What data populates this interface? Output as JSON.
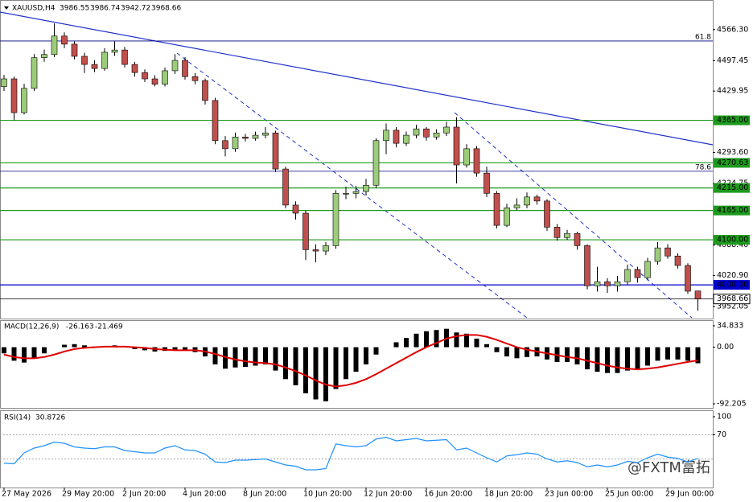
{
  "chart_data": [
    {
      "type": "candlestick",
      "symbol": "XAUUSD,H4",
      "categories": [
        "27 May 2026",
        null,
        null,
        null,
        null,
        null,
        "29 May 20:00",
        null,
        null,
        null,
        null,
        null,
        "2 Jun 20:00",
        null,
        null,
        null,
        null,
        null,
        "4 Jun 20:00",
        null,
        null,
        null,
        null,
        null,
        "8 Jun 20:00",
        null,
        null,
        null,
        null,
        null,
        "10 Jun 20:00",
        null,
        null,
        null,
        null,
        null,
        "12 Jun 20:00",
        null,
        null,
        null,
        null,
        null,
        "16 Jun 20:00",
        null,
        null,
        null,
        null,
        null,
        "18 Jun 20:00",
        null,
        null,
        null,
        null,
        null,
        "23 Jun 00:00",
        null,
        null,
        null,
        null,
        null,
        "25 Jun 00:00",
        null,
        null,
        null,
        null,
        null,
        "29 Jun 00:00",
        null,
        null,
        null
      ],
      "open": [
        4440,
        4457,
        4382,
        4436,
        4504,
        4511,
        4552,
        4534,
        4507,
        4489,
        4480,
        4516,
        4521,
        4489,
        4471,
        4457,
        4445,
        4475,
        4498,
        4462,
        4453,
        4409,
        4320,
        4302,
        4328,
        4325,
        4332,
        4337,
        4257,
        4177,
        4159,
        4078,
        4075,
        4087,
        4203,
        4203,
        4207,
        4221,
        4320,
        4343,
        4314,
        4332,
        4346,
        4328,
        4337,
        4350,
        4266,
        4302,
        4248,
        4203,
        4132,
        4171,
        4177,
        4195,
        4186,
        4128,
        4105,
        4114,
        4087,
        3998,
        4007,
        3998,
        4007,
        4034,
        4016,
        4052,
        4082,
        4064,
        4043,
        3986.55
      ],
      "high": [
        4466,
        4462,
        4446,
        4512,
        4522,
        4580,
        4560,
        4540,
        4515,
        4498,
        4525,
        4540,
        4528,
        4495,
        4478,
        4465,
        4482,
        4512,
        4505,
        4470,
        4458,
        4415,
        4330,
        4338,
        4335,
        4340,
        4350,
        4342,
        4262,
        4185,
        4165,
        4090,
        4095,
        4210,
        4218,
        4220,
        4235,
        4325,
        4358,
        4350,
        4340,
        4355,
        4350,
        4345,
        4362,
        4372,
        4312,
        4308,
        4262,
        4208,
        4180,
        4192,
        4205,
        4200,
        4190,
        4135,
        4122,
        4118,
        4090,
        4040,
        4015,
        4020,
        4045,
        4040,
        4060,
        4095,
        4090,
        4070,
        4048,
        3986.74
      ],
      "low": [
        4430,
        4365,
        4378,
        4430,
        4495,
        4505,
        4525,
        4500,
        4470,
        4472,
        4475,
        4508,
        4482,
        4462,
        4450,
        4440,
        4440,
        4468,
        4455,
        4445,
        4400,
        4312,
        4285,
        4295,
        4318,
        4320,
        4325,
        4250,
        4170,
        4145,
        4055,
        4050,
        4066,
        4080,
        4190,
        4192,
        4198,
        4215,
        4290,
        4305,
        4308,
        4325,
        4320,
        4322,
        4330,
        4225,
        4260,
        4240,
        4195,
        4125,
        4128,
        4165,
        4170,
        4178,
        4120,
        4098,
        4100,
        4078,
        3990,
        3985,
        3982,
        3985,
        4000,
        4005,
        4010,
        4045,
        4058,
        4036,
        3980,
        3942.72
      ],
      "close": [
        4457,
        4382,
        4436,
        4504,
        4511,
        4552,
        4534,
        4507,
        4489,
        4480,
        4516,
        4521,
        4489,
        4471,
        4457,
        4445,
        4475,
        4498,
        4462,
        4453,
        4409,
        4320,
        4302,
        4328,
        4325,
        4332,
        4337,
        4257,
        4177,
        4159,
        4078,
        4075,
        4087,
        4203,
        4203,
        4207,
        4221,
        4320,
        4343,
        4314,
        4332,
        4346,
        4328,
        4337,
        4350,
        4266,
        4302,
        4248,
        4203,
        4132,
        4171,
        4177,
        4195,
        4186,
        4128,
        4105,
        4114,
        4087,
        3998,
        4007,
        3998,
        4007,
        4034,
        4016,
        4052,
        4082,
        4064,
        4043,
        3986,
        3968.66
      ],
      "up_color": "#9ccc7a",
      "down_color": "#c0504d",
      "ylim": [
        3927,
        4623
      ],
      "yticks": [
        {
          "value": 4566.3,
          "label": "4566.30"
        },
        {
          "value": 4497.45,
          "label": "4497.45"
        },
        {
          "value": 4429.95,
          "label": "4429.95"
        },
        {
          "value": 4293.6,
          "label": "4293.60"
        },
        {
          "value": 4224.75,
          "label": "4224.75"
        },
        {
          "value": 4088.4,
          "label": "4088.40"
        },
        {
          "value": 4020.9,
          "label": "4020.90"
        },
        {
          "value": 3952.05,
          "label": "3952.05"
        }
      ],
      "levels": [
        {
          "value": 4365,
          "label": "4365.00",
          "color": "#1e9a1e"
        },
        {
          "value": 4270.63,
          "label": "4270.63",
          "color": "#1e9a1e"
        },
        {
          "value": 4215,
          "label": "4215.00",
          "color": "#1e9a1e"
        },
        {
          "value": 4165,
          "label": "4165.00",
          "color": "#1e9a1e"
        },
        {
          "value": 4100,
          "label": "4100.00",
          "color": "#1e9a1e"
        },
        {
          "value": 4000,
          "label": "4000.00",
          "color": "#0000cc"
        }
      ],
      "fib_levels": [
        {
          "level": 61.8,
          "price": 4541
        },
        {
          "level": 78.6,
          "price": 4252
        }
      ],
      "watermark": "@FXTM富拓"
    },
    {
      "type": "macd",
      "name": "MACD(12,26,9)",
      "histogram": [
        -10,
        -22,
        -25,
        -18,
        -10,
        0,
        4,
        5,
        3,
        1,
        2,
        3,
        0,
        -3,
        -5,
        -7,
        -6,
        -4,
        -5,
        -8,
        -15,
        -28,
        -35,
        -33,
        -32,
        -30,
        -28,
        -38,
        -52,
        -62,
        -75,
        -85,
        -88,
        -68,
        -52,
        -40,
        -28,
        -12,
        0,
        8,
        15,
        22,
        26,
        28,
        30,
        24,
        22,
        14,
        5,
        -8,
        -15,
        -18,
        -16,
        -15,
        -20,
        -24,
        -24,
        -28,
        -36,
        -40,
        -42,
        -42,
        -38,
        -36,
        -30,
        -22,
        -20,
        -20,
        -22,
        -26.163
      ],
      "signal": [
        -12,
        -16,
        -18,
        -18,
        -16,
        -12,
        -7,
        -3,
        -1,
        0,
        1,
        1,
        1,
        0,
        -1,
        -3,
        -4,
        -5,
        -5,
        -5,
        -7,
        -11,
        -16,
        -20,
        -23,
        -25,
        -26,
        -28,
        -33,
        -39,
        -46,
        -54,
        -61,
        -64,
        -62,
        -58,
        -52,
        -44,
        -35,
        -26,
        -17,
        -8,
        0,
        7,
        14,
        18,
        20,
        20,
        17,
        12,
        6,
        0,
        -4,
        -7,
        -10,
        -13,
        -16,
        -18,
        -22,
        -26,
        -30,
        -33,
        -35,
        -36,
        -35,
        -33,
        -30,
        -27,
        -24,
        -21.469
      ],
      "histogram_color": "#000000",
      "signal_color": "#e00000",
      "ylim": [
        -98.8,
        44
      ],
      "yticks": [
        {
          "value": 34.833,
          "label": "34.833"
        },
        {
          "value": 0,
          "label": "0.00"
        },
        {
          "value": -92.205,
          "label": "-92.205"
        }
      ]
    },
    {
      "type": "rsi",
      "name": "RSI(14)",
      "values": [
        23,
        22,
        40,
        48,
        52,
        58,
        56,
        50,
        48,
        47,
        50,
        50,
        44,
        42,
        40,
        40,
        48,
        52,
        45,
        44,
        38,
        25,
        24,
        28,
        28,
        29,
        30,
        25,
        20,
        18,
        12,
        12,
        14,
        55,
        52,
        50,
        52,
        63,
        66,
        60,
        62,
        64,
        60,
        61,
        62,
        45,
        48,
        40,
        32,
        25,
        35,
        37,
        40,
        38,
        30,
        25,
        27,
        24,
        17,
        20,
        17,
        20,
        26,
        24,
        32,
        38,
        33,
        31,
        25,
        30.8726
      ],
      "color": "#1e90ff",
      "ylim": [
        0,
        100
      ],
      "yticks": [
        100,
        70
      ],
      "levels": [
        70,
        30
      ]
    }
  ]
}
